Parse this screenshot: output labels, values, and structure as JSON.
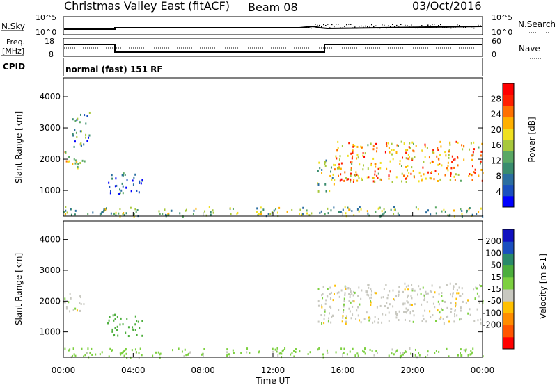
{
  "header": {
    "title": "Christmas Valley East (fitACF)",
    "beam": "Beam 08",
    "date": "03/Oct/2016"
  },
  "top_panels": {
    "nsky_label": "N.Sky",
    "nsearch_label": "N.Search",
    "nsky_ticks": [
      "10^5",
      "10^0"
    ],
    "nsearch_ticks": [
      "10^5",
      "10^0"
    ],
    "freq_label_1": "Freq.",
    "freq_label_2": "[MHz]",
    "freq_ticks": [
      "18",
      "8"
    ],
    "nave_label": "Nave",
    "nave_ticks": [
      "60",
      "0"
    ],
    "cpid_label": "CPID",
    "cpid_text": "normal (fast) 151 RF"
  },
  "colors": {
    "power": [
      "#0000ff",
      "#1a4fbf",
      "#2b6ea0",
      "#3a8c6e",
      "#5aa864",
      "#a8c83c",
      "#f0e020",
      "#ffb000",
      "#ff7000",
      "#ff2000",
      "#ff0000"
    ],
    "velocity": [
      "#ff0000",
      "#ff5500",
      "#ff8c00",
      "#ffc000",
      "#c8c8c0",
      "#7dd040",
      "#4cae3c",
      "#2a8a6a",
      "#1a4fbf",
      "#1010c0"
    ]
  },
  "chart_data": [
    {
      "type": "heatmap",
      "name": "power",
      "ylabel": "Slant Range [km]",
      "yticks": [
        "4000",
        "3000",
        "2000",
        "1000"
      ],
      "ytick_values": [
        4000,
        3000,
        2000,
        1000
      ],
      "ylim": [
        180,
        4600
      ],
      "xlim_hours": [
        0,
        24
      ],
      "colorbar_label": "Power [dB]",
      "colorbar_ticks": [
        "28",
        "24",
        "20",
        "16",
        "12",
        "8",
        "4"
      ],
      "colorbar_range": [
        0,
        32
      ],
      "regions": [
        {
          "t0": 0.0,
          "t1": 1.2,
          "r0": 1700,
          "r1": 2300,
          "db": 18
        },
        {
          "t0": 0.5,
          "t1": 1.5,
          "r0": 2400,
          "r1": 3600,
          "db": 10
        },
        {
          "t0": 2.5,
          "t1": 4.5,
          "r0": 900,
          "r1": 1600,
          "db": 6
        },
        {
          "t0": 0.0,
          "t1": 24.0,
          "r0": 200,
          "r1": 500,
          "db": 14
        },
        {
          "t0": 14.5,
          "t1": 15.5,
          "r0": 1000,
          "r1": 2000,
          "db": 14
        },
        {
          "t0": 15.5,
          "t1": 24.0,
          "r0": 1300,
          "r1": 2600,
          "db": 22
        }
      ]
    },
    {
      "type": "heatmap",
      "name": "velocity",
      "ylabel": "Slant Range [km]",
      "yticks": [
        "4000",
        "3000",
        "2000",
        "1000"
      ],
      "ytick_values": [
        4000,
        3000,
        2000,
        1000
      ],
      "ylim": [
        180,
        4600
      ],
      "xlabel": "Time UT",
      "xticks": [
        "00:00",
        "04:00",
        "08:00",
        "12:00",
        "16:00",
        "20:00",
        "00:00"
      ],
      "xtick_hours": [
        0,
        4,
        8,
        12,
        16,
        20,
        24
      ],
      "colorbar_label": "Velocity [m s-1]",
      "colorbar_ticks": [
        "200",
        "100",
        "50",
        "15",
        "-15",
        "-50",
        "-100",
        "-200"
      ],
      "regions": [
        {
          "t0": 0.0,
          "t1": 1.2,
          "r0": 1700,
          "r1": 2300,
          "vel": 0
        },
        {
          "t0": 2.5,
          "t1": 4.5,
          "r0": 900,
          "r1": 1600,
          "vel": 80
        },
        {
          "t0": 0.0,
          "t1": 24.0,
          "r0": 200,
          "r1": 500,
          "vel": 30
        },
        {
          "t0": 14.5,
          "t1": 24.0,
          "r0": 1300,
          "r1": 2600,
          "vel": 0
        }
      ]
    }
  ]
}
